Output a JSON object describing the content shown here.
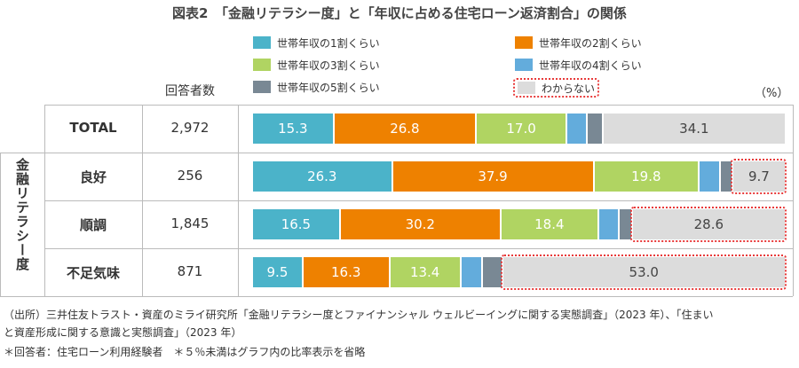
{
  "title": "図表2　「金融リテラシー度」と「年収に占める住宅ローン返済割合」の関係",
  "chart_data": {
    "type": "bar",
    "orientation": "horizontal",
    "stacked": true,
    "unit": "（%）",
    "count_header": "回答者数",
    "group_label": "金融リテラシー度",
    "series": [
      {
        "name": "世帯年収の1割くらい",
        "color": "#4bb3c9"
      },
      {
        "name": "世帯年収の2割くらい",
        "color": "#ee8100"
      },
      {
        "name": "世帯年収の3割くらい",
        "color": "#b0d462"
      },
      {
        "name": "世帯年収の4割くらい",
        "color": "#63acdc"
      },
      {
        "name": "世帯年収の5割くらい",
        "color": "#798894"
      },
      {
        "name": "わからない",
        "color": "#dcdcdc"
      }
    ],
    "rows": [
      {
        "label": "TOTAL",
        "count": "2,972",
        "values": [
          15.3,
          26.8,
          17.0,
          3.8,
          3.0,
          34.1
        ],
        "labels": [
          "15.3",
          "26.8",
          "17.0",
          "",
          "",
          "34.1"
        ]
      },
      {
        "label": "良好",
        "count": "256",
        "values": [
          26.3,
          37.9,
          19.8,
          3.9,
          2.4,
          9.7
        ],
        "labels": [
          "26.3",
          "37.9",
          "19.8",
          "",
          "",
          "9.7"
        ]
      },
      {
        "label": "順調",
        "count": "1,845",
        "values": [
          16.5,
          30.2,
          18.4,
          3.9,
          2.4,
          28.6
        ],
        "labels": [
          "16.5",
          "30.2",
          "18.4",
          "",
          "",
          "28.6"
        ]
      },
      {
        "label": "不足気味",
        "count": "871",
        "values": [
          9.5,
          16.3,
          13.4,
          4.0,
          3.8,
          53.0
        ],
        "labels": [
          "9.5",
          "16.3",
          "13.4",
          "",
          "",
          "53.0"
        ]
      }
    ]
  },
  "notes": [
    "（出所）三井住友トラスト・資産のミライ研究所「金融リテラシー度とファイナンシャル ウェルビーイングに関する実態調査」（2023 年）、「住まい",
    "と資産形成に関する意識と実態調査」（2023 年）",
    "＊回答者：住宅ローン利用経験者　＊５％未満はグラフ内の比率表示を省略"
  ]
}
